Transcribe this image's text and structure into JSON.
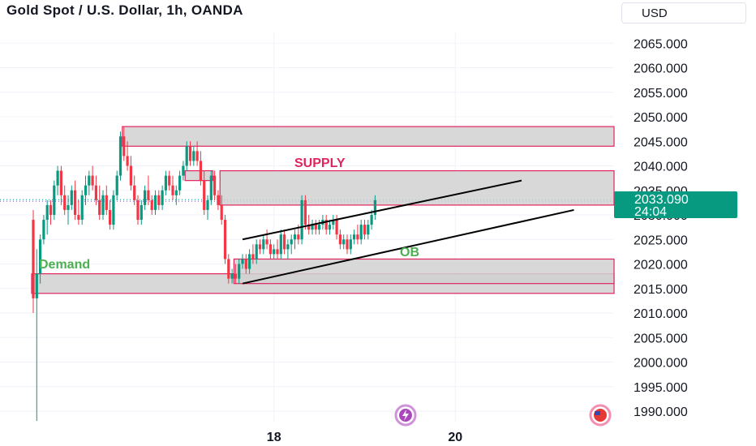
{
  "header": {
    "title": "Gold Spot / U.S. Dollar, 1h, OANDA",
    "currency": "USD"
  },
  "price_tag": {
    "price": "2033.090",
    "countdown": "24:04"
  },
  "colors": {
    "up": "#089981",
    "down": "#f23645",
    "zone_fill": "#d1d1d1",
    "zone_border": "#e0245e",
    "supply_text": "#e0245e",
    "demand_text": "#4caf50",
    "trendline": "#000000",
    "price_tag": "#089981"
  },
  "chart_data": {
    "type": "candlestick",
    "title": "Gold Spot / U.S. Dollar, 1h, OANDA",
    "ylim": [
      1987,
      2070
    ],
    "y_ticks": [
      "2065.000",
      "2060.000",
      "2055.000",
      "2050.000",
      "2045.000",
      "2040.000",
      "2035.000",
      "2030.000",
      "2025.000",
      "2020.000",
      "2015.000",
      "2010.000",
      "2005.000",
      "2000.000",
      "1995.000",
      "1990.000"
    ],
    "x_ticks": [
      "18",
      "20"
    ],
    "x_tick_bars": [
      69,
      121
    ],
    "last_price": 2033.09,
    "ohlc": [
      [
        2029,
        2031,
        2010,
        2013
      ],
      [
        2013,
        2023,
        1988,
        2018
      ],
      [
        2018,
        2026,
        2016,
        2025
      ],
      [
        2025,
        2030,
        2024,
        2029
      ],
      [
        2029,
        2033,
        2026,
        2032
      ],
      [
        2032,
        2033,
        2028,
        2030
      ],
      [
        2030,
        2037,
        2029,
        2036
      ],
      [
        2036,
        2040,
        2034,
        2039
      ],
      [
        2039,
        2040,
        2032,
        2034
      ],
      [
        2034,
        2036,
        2030,
        2031
      ],
      [
        2031,
        2034,
        2028,
        2032
      ],
      [
        2032,
        2036,
        2031,
        2035
      ],
      [
        2035,
        2037,
        2029,
        2030
      ],
      [
        2030,
        2033,
        2028,
        2029
      ],
      [
        2029,
        2035,
        2028,
        2034
      ],
      [
        2034,
        2038,
        2032,
        2036
      ],
      [
        2036,
        2039,
        2034,
        2038
      ],
      [
        2038,
        2040,
        2035,
        2036
      ],
      [
        2036,
        2038,
        2032,
        2033
      ],
      [
        2033,
        2036,
        2029,
        2030
      ],
      [
        2030,
        2035,
        2029,
        2034
      ],
      [
        2034,
        2036,
        2030,
        2031
      ],
      [
        2031,
        2033,
        2027,
        2028
      ],
      [
        2028,
        2035,
        2027,
        2034
      ],
      [
        2034,
        2039,
        2033,
        2038
      ],
      [
        2038,
        2047,
        2037,
        2046
      ],
      [
        2046,
        2048,
        2041,
        2042
      ],
      [
        2042,
        2045,
        2039,
        2040
      ],
      [
        2040,
        2042,
        2035,
        2036
      ],
      [
        2036,
        2038,
        2032,
        2033
      ],
      [
        2033,
        2034,
        2028,
        2029
      ],
      [
        2029,
        2033,
        2028,
        2032
      ],
      [
        2032,
        2036,
        2031,
        2035
      ],
      [
        2035,
        2038,
        2032,
        2033
      ],
      [
        2033,
        2034,
        2030,
        2031
      ],
      [
        2031,
        2035,
        2030,
        2034
      ],
      [
        2034,
        2035,
        2031,
        2032
      ],
      [
        2032,
        2036,
        2031,
        2035
      ],
      [
        2035,
        2039,
        2034,
        2038
      ],
      [
        2038,
        2039,
        2035,
        2036
      ],
      [
        2036,
        2038,
        2033,
        2034
      ],
      [
        2034,
        2036,
        2032,
        2035
      ],
      [
        2035,
        2039,
        2034,
        2038
      ],
      [
        2038,
        2041,
        2037,
        2040
      ],
      [
        2040,
        2045,
        2039,
        2044
      ],
      [
        2044,
        2045,
        2040,
        2041
      ],
      [
        2041,
        2044,
        2040,
        2043
      ],
      [
        2043,
        2045,
        2040,
        2041
      ],
      [
        2041,
        2043,
        2036,
        2037
      ],
      [
        2037,
        2039,
        2030,
        2031
      ],
      [
        2031,
        2034,
        2029,
        2033
      ],
      [
        2033,
        2039,
        2032,
        2038
      ],
      [
        2038,
        2039,
        2033,
        2034
      ],
      [
        2034,
        2035,
        2031,
        2032
      ],
      [
        2032,
        2034,
        2028,
        2029
      ],
      [
        2029,
        2030,
        2020,
        2021
      ],
      [
        2021,
        2022,
        2016,
        2017
      ],
      [
        2017,
        2019,
        2016,
        2018
      ],
      [
        2018,
        2020,
        2016,
        2017
      ],
      [
        2017,
        2021,
        2016,
        2020
      ],
      [
        2020,
        2022,
        2019,
        2021
      ],
      [
        2021,
        2022,
        2018,
        2019
      ],
      [
        2019,
        2023,
        2018,
        2022
      ],
      [
        2022,
        2024,
        2020,
        2021
      ],
      [
        2021,
        2025,
        2020,
        2024
      ],
      [
        2024,
        2025,
        2022,
        2023
      ],
      [
        2023,
        2026,
        2022,
        2025
      ],
      [
        2025,
        2027,
        2023,
        2024
      ],
      [
        2024,
        2025,
        2021,
        2022
      ],
      [
        2022,
        2024,
        2021,
        2023
      ],
      [
        2023,
        2025,
        2021,
        2022
      ],
      [
        2022,
        2027,
        2021,
        2026
      ],
      [
        2026,
        2027,
        2022,
        2023
      ],
      [
        2023,
        2025,
        2021,
        2024
      ],
      [
        2024,
        2026,
        2022,
        2025
      ],
      [
        2025,
        2027,
        2023,
        2026
      ],
      [
        2026,
        2028,
        2024,
        2025
      ],
      [
        2025,
        2034,
        2024,
        2033
      ],
      [
        2033,
        2034,
        2027,
        2028
      ],
      [
        2028,
        2030,
        2026,
        2027
      ],
      [
        2027,
        2029,
        2026,
        2028
      ],
      [
        2028,
        2029,
        2026,
        2027
      ],
      [
        2027,
        2029,
        2026,
        2028
      ],
      [
        2028,
        2030,
        2027,
        2029
      ],
      [
        2029,
        2030,
        2026,
        2027
      ],
      [
        2027,
        2029,
        2026,
        2028
      ],
      [
        2028,
        2030,
        2027,
        2029
      ],
      [
        2029,
        2030,
        2025,
        2026
      ],
      [
        2026,
        2027,
        2023,
        2024
      ],
      [
        2024,
        2026,
        2023,
        2025
      ],
      [
        2025,
        2026,
        2022,
        2023
      ],
      [
        2023,
        2026,
        2022,
        2025
      ],
      [
        2025,
        2027,
        2024,
        2026
      ],
      [
        2026,
        2028,
        2024,
        2025
      ],
      [
        2025,
        2029,
        2024,
        2028
      ],
      [
        2028,
        2029,
        2025,
        2026
      ],
      [
        2026,
        2029,
        2025,
        2028
      ],
      [
        2028,
        2031,
        2027,
        2030
      ],
      [
        2030,
        2034,
        2029,
        2033
      ]
    ],
    "zones": [
      {
        "name": "SUPPLY",
        "top": 2048,
        "bottom": 2044,
        "from_bar": 26,
        "to_bar": 9999
      },
      {
        "name": "",
        "top": 2039,
        "bottom": 2037,
        "from_bar": 44,
        "to_bar": 51
      },
      {
        "name": "",
        "top": 2039,
        "bottom": 2032,
        "from_bar": 54,
        "to_bar": 9999
      },
      {
        "name": "Demand",
        "top": 2018,
        "bottom": 2014,
        "from_bar": 0,
        "to_bar": 9999
      },
      {
        "name": "OB",
        "top": 2021,
        "bottom": 2016,
        "from_bar": 58,
        "to_bar": 9999
      }
    ],
    "channel": [
      {
        "from": [
          60,
          2025
        ],
        "to": [
          140,
          2037
        ]
      },
      {
        "from": [
          60,
          2016
        ],
        "to": [
          155,
          2031
        ]
      }
    ]
  },
  "labels": {
    "supply": "SUPPLY",
    "demand": "Demand",
    "ob": "OB"
  }
}
